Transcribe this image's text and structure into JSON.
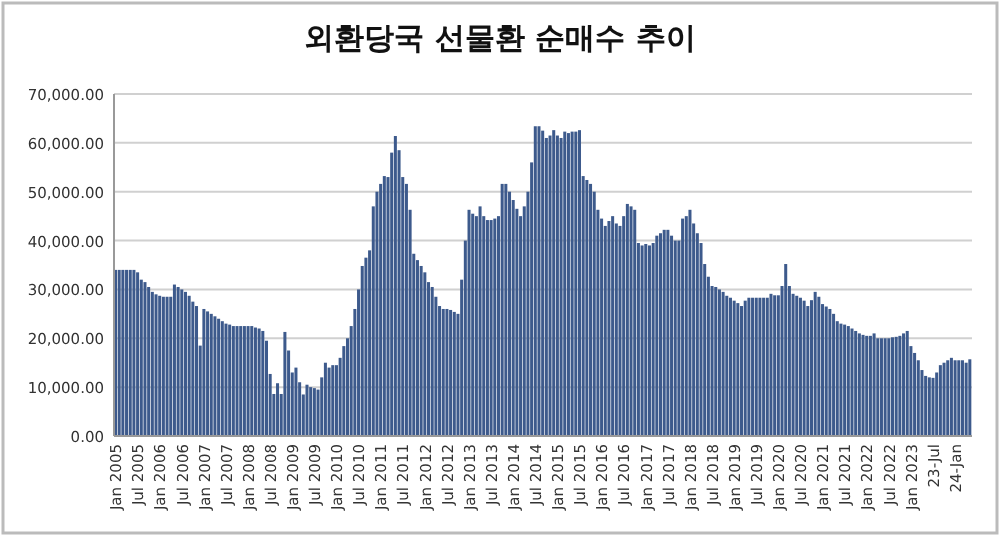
{
  "chart_data": {
    "type": "bar",
    "title": "외환당국 선물환 순매수 추이",
    "categories": [
      "Jan 2005",
      null,
      null,
      null,
      null,
      null,
      "Jul 2005",
      null,
      null,
      null,
      null,
      null,
      "Jan 2006",
      null,
      null,
      null,
      null,
      null,
      "Jul 2006",
      null,
      null,
      null,
      null,
      null,
      "Jan 2007",
      null,
      null,
      null,
      null,
      null,
      "Jul 2007",
      null,
      null,
      null,
      null,
      null,
      "Jan 2008",
      null,
      null,
      null,
      null,
      null,
      "Jul 2008",
      null,
      null,
      null,
      null,
      null,
      "Jan 2009",
      null,
      null,
      null,
      null,
      null,
      "Jul 2009",
      null,
      null,
      null,
      null,
      null,
      "Jan 2010",
      null,
      null,
      null,
      null,
      null,
      "Jul 2010",
      null,
      null,
      null,
      null,
      null,
      "Jan 2011",
      null,
      null,
      null,
      null,
      null,
      "Jul 2011",
      null,
      null,
      null,
      null,
      null,
      "Jan 2012",
      null,
      null,
      null,
      null,
      null,
      "Jul 2012",
      null,
      null,
      null,
      null,
      null,
      "Jan 2013",
      null,
      null,
      null,
      null,
      null,
      "Jul 2013",
      null,
      null,
      null,
      null,
      null,
      "Jan 2014",
      null,
      null,
      null,
      null,
      null,
      "Jul 2014",
      null,
      null,
      null,
      null,
      null,
      "Jan 2015",
      null,
      null,
      null,
      null,
      null,
      "Jul 2015",
      null,
      null,
      null,
      null,
      null,
      "Jan 2016",
      null,
      null,
      null,
      null,
      null,
      "Jul 2016",
      null,
      null,
      null,
      null,
      null,
      "Jan 2017",
      null,
      null,
      null,
      null,
      null,
      "Jul 2017",
      null,
      null,
      null,
      null,
      null,
      "Jan 2018",
      null,
      null,
      null,
      null,
      null,
      "Jul 2018",
      null,
      null,
      null,
      null,
      null,
      "Jan 2019",
      null,
      null,
      null,
      null,
      null,
      "Jul 2019",
      null,
      null,
      null,
      null,
      null,
      "Jan 2020",
      null,
      null,
      null,
      null,
      null,
      "Jul 2020",
      null,
      null,
      null,
      null,
      null,
      "Jan 2021",
      null,
      null,
      null,
      null,
      null,
      "Jul 2021",
      null,
      null,
      null,
      null,
      null,
      "Jan 2022",
      null,
      null,
      null,
      null,
      null,
      "Jul 2022",
      null,
      null,
      null,
      null,
      null,
      "Jan 2023",
      null,
      null,
      null,
      null,
      null,
      "23-Jul",
      null,
      null,
      null,
      null,
      null,
      "24-Jan",
      null,
      null,
      null,
      null
    ],
    "values": [
      34000,
      34000,
      34000,
      34000,
      34000,
      34000,
      33500,
      32000,
      31500,
      30500,
      29500,
      29000,
      28700,
      28500,
      28500,
      28500,
      31000,
      30500,
      30000,
      29500,
      28700,
      27500,
      26600,
      18500,
      26000,
      25500,
      25000,
      24500,
      24000,
      23500,
      23000,
      22800,
      22500,
      22500,
      22500,
      22500,
      22500,
      22500,
      22200,
      22000,
      21500,
      19500,
      12700,
      8600,
      10800,
      8600,
      21300,
      17500,
      13000,
      14000,
      11000,
      8500,
      10500,
      10000,
      9800,
      9500,
      12000,
      15000,
      14000,
      14500,
      14500,
      16000,
      18400,
      20000,
      22500,
      26000,
      30000,
      34800,
      36500,
      38000,
      47000,
      50000,
      51600,
      53200,
      53000,
      58000,
      61400,
      58500,
      53000,
      51600,
      46300,
      37300,
      36000,
      34800,
      33500,
      31500,
      30500,
      28500,
      26600,
      26000,
      26000,
      25800,
      25400,
      25000,
      32000,
      40000,
      46300,
      45500,
      45000,
      47000,
      45000,
      44200,
      44200,
      44500,
      45000,
      51600,
      51600,
      50000,
      48300,
      46500,
      45000,
      47000,
      50000,
      56000,
      63400,
      63400,
      62500,
      61000,
      61500,
      62600,
      61500,
      61000,
      62300,
      62000,
      62300,
      62300,
      62600,
      53200,
      52400,
      51600,
      50000,
      46300,
      44500,
      43000,
      44000,
      45000,
      43500,
      43000,
      45000,
      47500,
      47000,
      46300,
      39500,
      39000,
      39300,
      39000,
      39500,
      41000,
      41500,
      42200,
      42200,
      41000,
      40000,
      40000,
      44500,
      45000,
      46300,
      43500,
      41500,
      39500,
      35200,
      32600,
      30700,
      30500,
      30000,
      29500,
      28700,
      28300,
      27700,
      27200,
      26600,
      27700,
      28300,
      28300,
      28300,
      28300,
      28300,
      28300,
      29100,
      28800,
      28800,
      30700,
      35200,
      30700,
      29100,
      28700,
      28300,
      27700,
      26600,
      27800,
      29500,
      28500,
      27000,
      26500,
      26000,
      25000,
      23500,
      23000,
      22800,
      22500,
      22000,
      21500,
      21000,
      20700,
      20500,
      20500,
      21000,
      20000,
      20000,
      20000,
      20000,
      20200,
      20300,
      20500,
      21000,
      21500,
      18400,
      17000,
      15500,
      13500,
      12300,
      12000,
      11900,
      13000,
      14500,
      15000,
      15500,
      16000,
      15500,
      15500,
      15500,
      15000,
      15700
    ],
    "color": "#3d5a8c",
    "ylim": [
      0,
      70000
    ],
    "yticks": [
      {
        "value": 0,
        "label": "0.00"
      },
      {
        "value": 10000,
        "label": "10,000.00"
      },
      {
        "value": 20000,
        "label": "20,000.00"
      },
      {
        "value": 30000,
        "label": "30,000.00"
      },
      {
        "value": 40000,
        "label": "40,000.00"
      },
      {
        "value": 50000,
        "label": "50,000.00"
      },
      {
        "value": 60000,
        "label": "60,000.00"
      },
      {
        "value": 70000,
        "label": "70,000.00"
      }
    ],
    "grid": "y"
  }
}
